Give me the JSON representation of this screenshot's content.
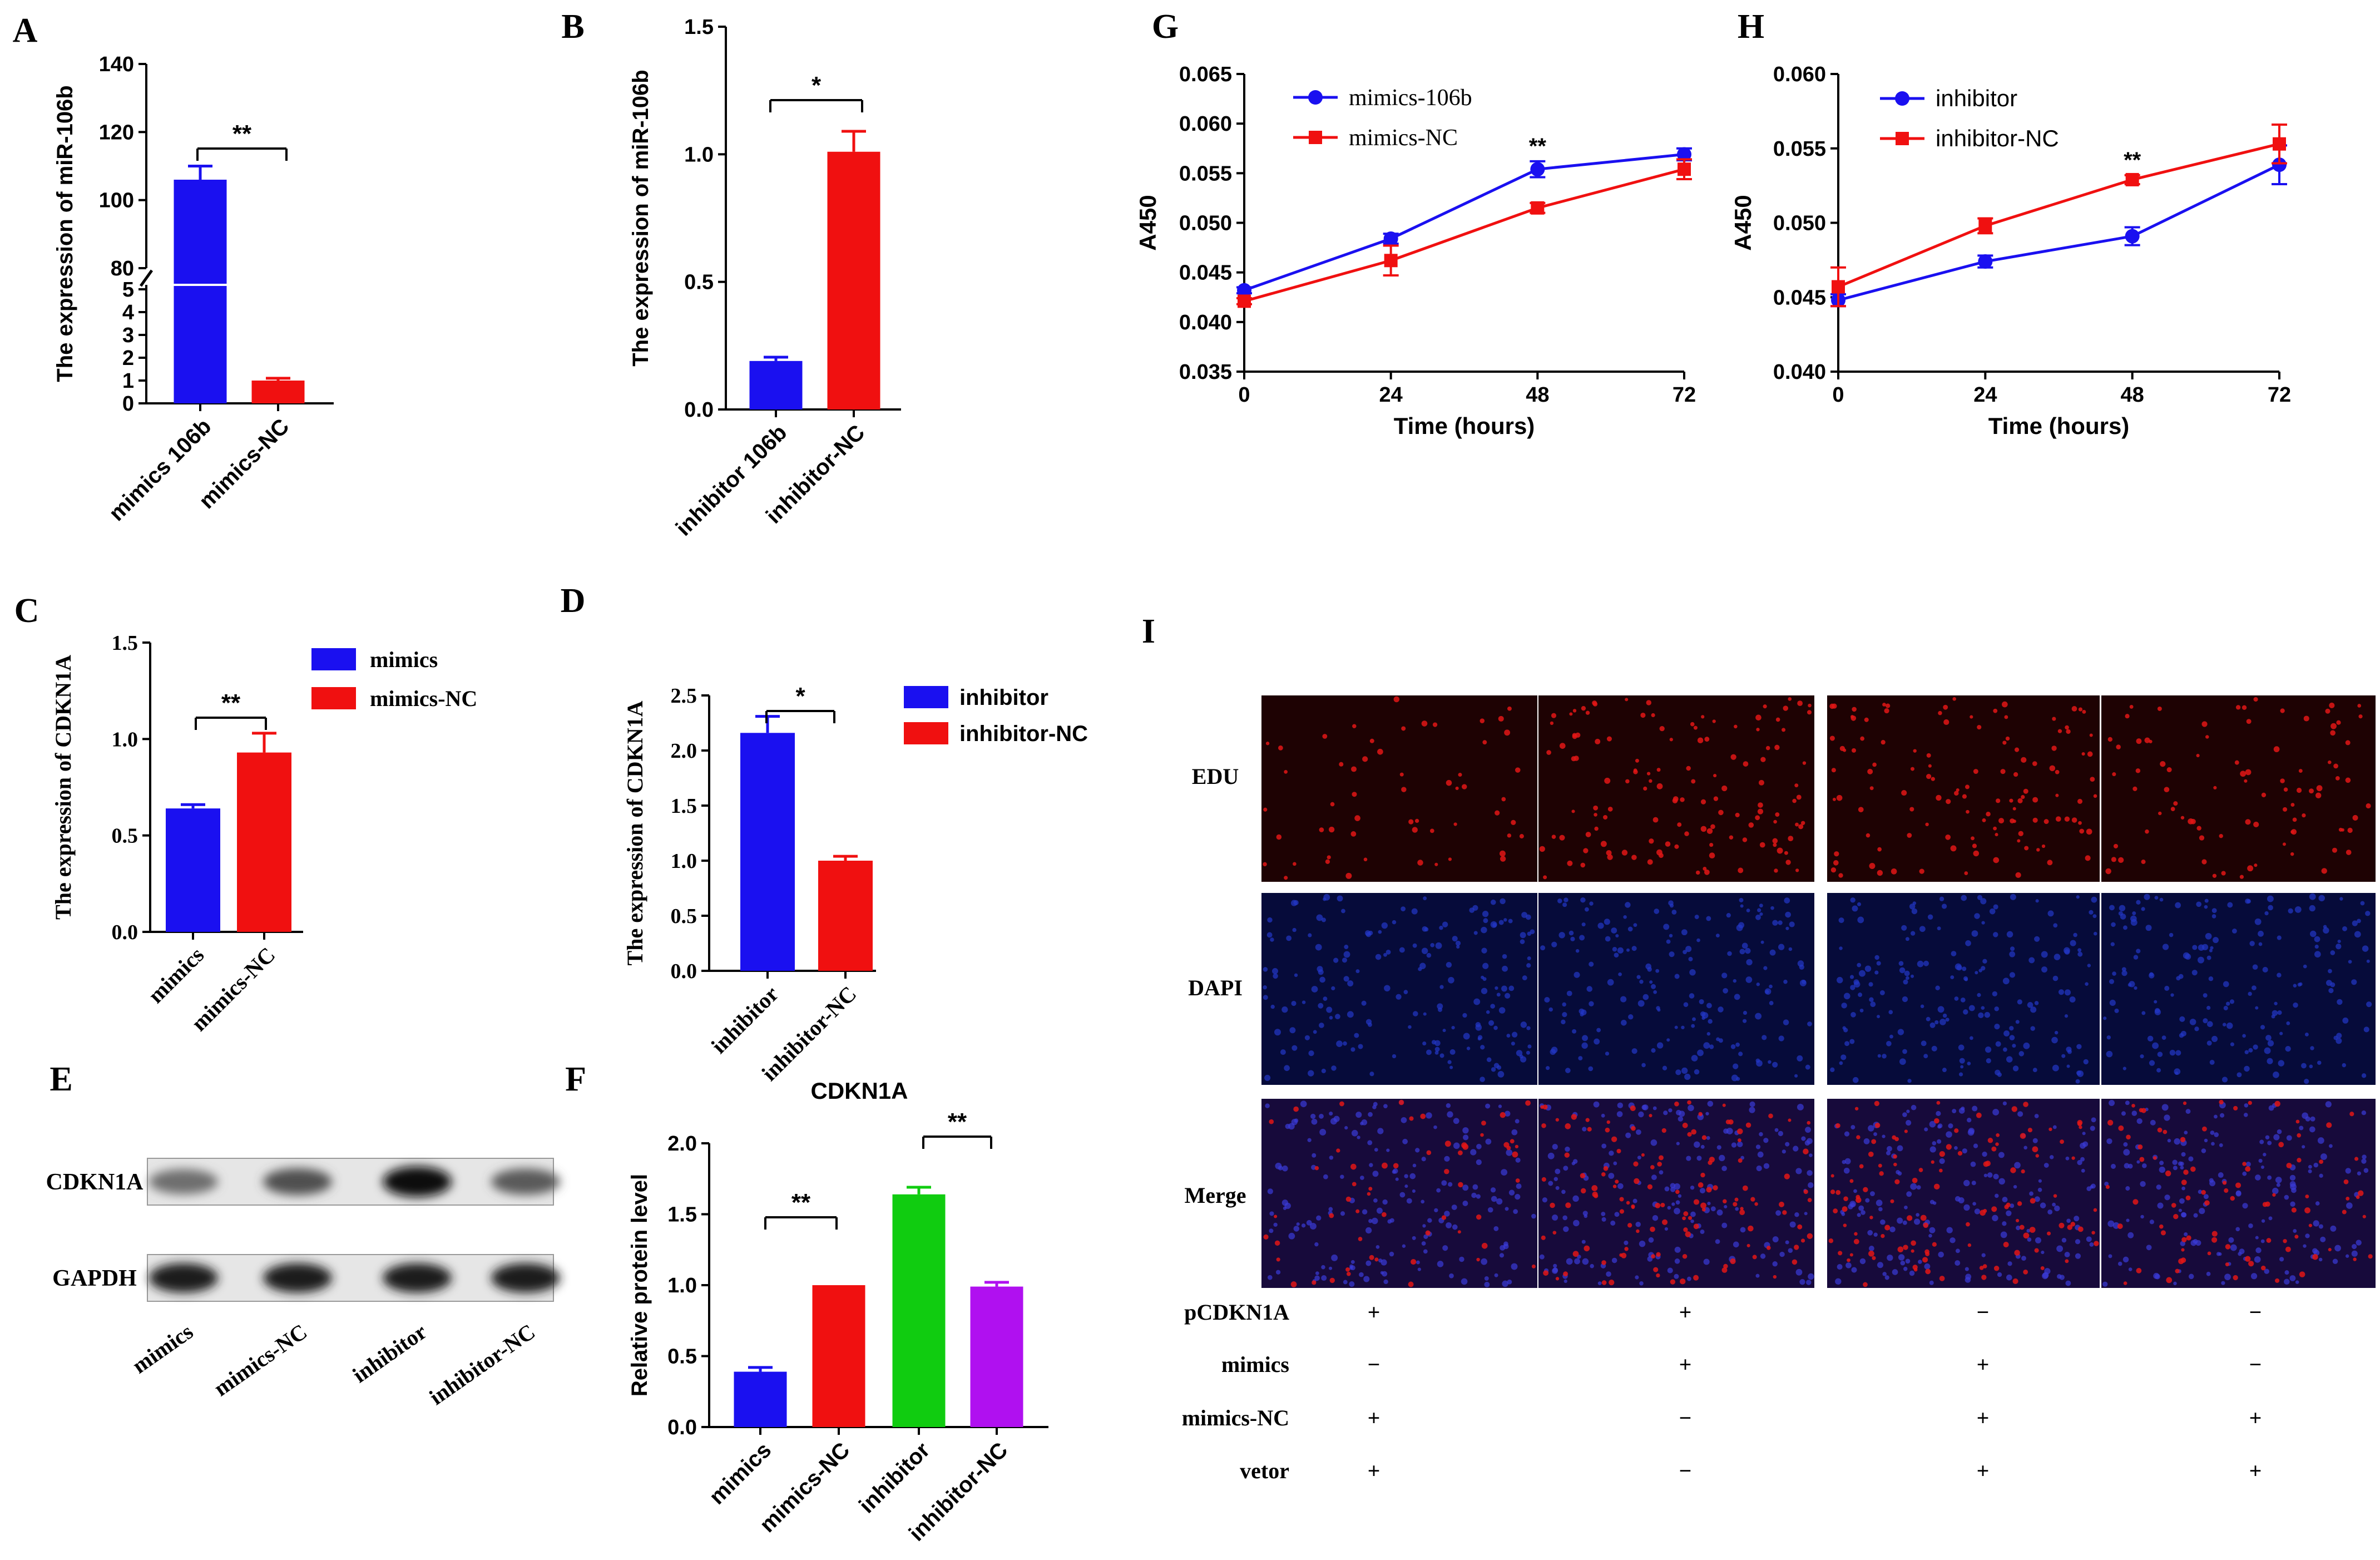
{
  "colors": {
    "blue": "#1a10f0",
    "red": "#f01010",
    "green": "#10cc10",
    "purple": "#b010f0",
    "black": "#000000"
  },
  "chart_data": [
    {
      "panel": "A",
      "type": "bar",
      "ylabel": "The expression of miR-106b",
      "categories": [
        "mimics 106b",
        "mimics-NC"
      ],
      "values": [
        106,
        1.0
      ],
      "errors": [
        4,
        0.1
      ],
      "colors": [
        "#1a10f0",
        "#f01010"
      ],
      "yaxis_break": {
        "lower_range": [
          0,
          5
        ],
        "upper_range": [
          80,
          140
        ]
      },
      "ytick_labels": [
        "0",
        "1",
        "2",
        "3",
        "4",
        "5",
        "80",
        "100",
        "120",
        "140"
      ],
      "significance": [
        {
          "label": "**",
          "between": [
            0,
            1
          ]
        }
      ]
    },
    {
      "panel": "B",
      "type": "bar",
      "ylabel": "The expression of miR-106b",
      "categories": [
        "inhibitor  106b",
        "inhibitor-NC"
      ],
      "values": [
        0.19,
        1.01
      ],
      "errors": [
        0.015,
        0.08
      ],
      "colors": [
        "#1a10f0",
        "#f01010"
      ],
      "ylim": [
        0,
        1.5
      ],
      "ytick_labels": [
        "0.0",
        "0.5",
        "1.0",
        "1.5"
      ],
      "significance": [
        {
          "label": "*",
          "between": [
            0,
            1
          ]
        }
      ]
    },
    {
      "panel": "C",
      "type": "bar",
      "ylabel": "The expression of CDKN1A",
      "categories": [
        "mimics",
        "mimics-NC"
      ],
      "values": [
        0.64,
        0.93
      ],
      "errors": [
        0.02,
        0.1
      ],
      "colors": [
        "#1a10f0",
        "#f01010"
      ],
      "ylim": [
        0,
        1.5
      ],
      "ytick_labels": [
        "0.0",
        "0.5",
        "1.0",
        "1.5"
      ],
      "legend": [
        "mimics",
        "mimics-NC"
      ],
      "significance": [
        {
          "label": "**",
          "between": [
            0,
            1
          ]
        }
      ]
    },
    {
      "panel": "D",
      "type": "bar",
      "ylabel": "The expression of CDKN1A",
      "categories": [
        "inhibitor",
        "inhibitor-NC"
      ],
      "values": [
        2.16,
        1.0
      ],
      "errors": [
        0.15,
        0.04
      ],
      "colors": [
        "#1a10f0",
        "#f01010"
      ],
      "ylim": [
        0,
        2.5
      ],
      "ytick_labels": [
        "0.0",
        "0.5",
        "1.0",
        "1.5",
        "2.0",
        "2.5"
      ],
      "legend": [
        "inhibitor",
        "inhibitor-NC"
      ],
      "significance": [
        {
          "label": "*",
          "between": [
            0,
            1
          ]
        }
      ]
    },
    {
      "panel": "F",
      "type": "bar",
      "title": "CDKN1A",
      "ylabel": "Relative protein level",
      "categories": [
        "mimics",
        "mimics-NC",
        "inhibitor",
        "inhibitor-NC"
      ],
      "values": [
        0.39,
        1.0,
        1.64,
        0.99
      ],
      "errors": [
        0.03,
        0,
        0.05,
        0.03
      ],
      "colors": [
        "#1a10f0",
        "#f01010",
        "#10cc10",
        "#b010f0"
      ],
      "ylim": [
        0,
        2.0
      ],
      "ytick_labels": [
        "0.0",
        "0.5",
        "1.0",
        "1.5",
        "2.0"
      ],
      "significance": [
        {
          "label": "**",
          "between": [
            0,
            1
          ]
        },
        {
          "label": "**",
          "between": [
            2,
            3
          ]
        }
      ]
    },
    {
      "panel": "G",
      "type": "line",
      "xlabel": "Time (hours)",
      "ylabel": "A450",
      "x": [
        0,
        24,
        48,
        72
      ],
      "xlim": [
        0,
        72
      ],
      "ylim": [
        0.035,
        0.065
      ],
      "xtick_labels": [
        "0",
        "24",
        "48",
        "72"
      ],
      "ytick_labels": [
        "0.035",
        "0.040",
        "0.045",
        "0.050",
        "0.055",
        "0.060",
        "0.065"
      ],
      "series": [
        {
          "name": "mimics-106b",
          "color": "#1a10f0",
          "marker": "circle",
          "values": [
            0.0432,
            0.0484,
            0.0554,
            0.0569
          ],
          "errors": [
            0.0003,
            0.0005,
            0.0008,
            0.0006
          ]
        },
        {
          "name": "mimics-NC",
          "color": "#f01010",
          "marker": "square",
          "values": [
            0.0421,
            0.0462,
            0.0515,
            0.0554
          ],
          "errors": [
            0.0003,
            0.0015,
            0.0005,
            0.001
          ]
        }
      ],
      "annotations": [
        {
          "x": 48,
          "label": "**"
        }
      ]
    },
    {
      "panel": "H",
      "type": "line",
      "xlabel": "Time (hours)",
      "ylabel": "A450",
      "x": [
        0,
        24,
        48,
        72
      ],
      "xlim": [
        0,
        72
      ],
      "ylim": [
        0.04,
        0.06
      ],
      "xtick_labels": [
        "0",
        "24",
        "48",
        "72"
      ],
      "ytick_labels": [
        "0.040",
        "0.045",
        "0.050",
        "0.055",
        "0.060"
      ],
      "series": [
        {
          "name": "inhibitor",
          "color": "#1a10f0",
          "marker": "circle",
          "values": [
            0.0448,
            0.0474,
            0.0491,
            0.0539
          ],
          "errors": [
            0.0004,
            0.0004,
            0.0006,
            0.0013
          ]
        },
        {
          "name": "inhibitor-NC",
          "color": "#f01010",
          "marker": "square",
          "values": [
            0.0457,
            0.0498,
            0.0529,
            0.0553
          ],
          "errors": [
            0.0013,
            0.0005,
            0.0003,
            0.0013
          ]
        }
      ],
      "annotations": [
        {
          "x": 48,
          "label": "**"
        }
      ]
    }
  ],
  "blot": {
    "panel": "E",
    "bands": [
      "CDKN1A",
      "GAPDH"
    ],
    "lanes": [
      "mimics",
      "mimics-NC",
      "inhibitor",
      "inhibitor-NC"
    ],
    "cdkn1a_intensity": [
      0.45,
      0.6,
      0.95,
      0.55
    ],
    "gapdh_intensity": [
      0.85,
      0.85,
      0.85,
      0.85
    ]
  },
  "panel_i": {
    "panel": "I",
    "rows": [
      "EDU",
      "DAPI",
      "Merge"
    ],
    "condition_labels": [
      "pCDKN1A",
      "mimics",
      "mimics-NC",
      "vetor"
    ],
    "conditions": [
      [
        "+",
        "+",
        "−",
        "−"
      ],
      [
        "−",
        "+",
        "+",
        "−"
      ],
      [
        "+",
        "−",
        "+",
        "+"
      ],
      [
        "+",
        "−",
        "+",
        "+"
      ]
    ],
    "edu_density": [
      0.35,
      0.8,
      0.75,
      0.55
    ]
  },
  "panel_letters": [
    "A",
    "B",
    "C",
    "D",
    "E",
    "F",
    "G",
    "H",
    "I"
  ]
}
